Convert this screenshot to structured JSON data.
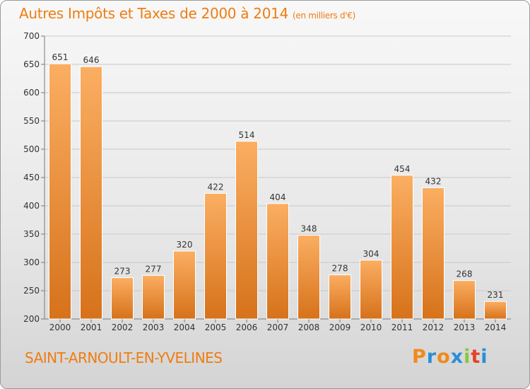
{
  "title": "Autres Impôts et Taxes de 2000 à 2014",
  "title_unit": "(en milliers d'€)",
  "town": "SAINT-ARNOULT-EN-YVELINES",
  "logo": {
    "letters": [
      "P",
      "r",
      "o",
      "x",
      "i",
      "t",
      "i"
    ],
    "colors": [
      "#f08a1c",
      "#2a8fd6",
      "#f08a1c",
      "#2a8fd6",
      "#8cc63f",
      "#e8402a",
      "#2a8fd6"
    ]
  },
  "colors": {
    "accent": "#f07c10",
    "bar_light": "#f9a85a",
    "bar_dark": "#d8741a"
  },
  "chart_data": {
    "type": "bar",
    "title": "Autres Impôts et Taxes de 2000 à 2014",
    "categories": [
      "2000",
      "2001",
      "2002",
      "2003",
      "2004",
      "2005",
      "2006",
      "2007",
      "2008",
      "2009",
      "2010",
      "2011",
      "2012",
      "2013",
      "2014"
    ],
    "values": [
      651,
      646,
      273,
      277,
      320,
      422,
      514,
      404,
      348,
      278,
      304,
      454,
      432,
      268,
      231
    ],
    "ylim": [
      200,
      700
    ],
    "yticks": [
      200,
      250,
      300,
      350,
      400,
      450,
      500,
      550,
      600,
      650,
      700
    ],
    "grid": true,
    "xlabel": "",
    "ylabel": ""
  }
}
